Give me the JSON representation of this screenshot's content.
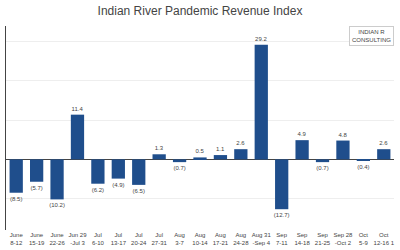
{
  "chart_data": {
    "type": "bar",
    "title": "Indian River Pandemic Revenue Index",
    "categories": [
      "June\n8-12",
      "June\n15-19",
      "June\n22-26",
      "Jun 29\n-Jul 3",
      "Jul\n6-10",
      "Jul\n13-17",
      "Jul\n20-24",
      "Jul\n27-31",
      "Aug\n3-7",
      "Aug\n10-14",
      "Aug\n17-21",
      "Aug\n24-28",
      "Aug 31\n-Sep 4",
      "Sep\n7-11",
      "Sep\n14-18",
      "Sep\n21-25",
      "Sep 28\n-Oct 2",
      "Oct\n5-9",
      "Oct\n12-16 1"
    ],
    "values": [
      -8.5,
      -5.7,
      -10.2,
      11.4,
      -6.2,
      -4.9,
      -6.5,
      1.3,
      -0.7,
      0.5,
      1.1,
      2.6,
      29.2,
      -12.7,
      4.9,
      -0.7,
      4.8,
      -0.4,
      2.6
    ],
    "value_labels": [
      "(8.5)",
      "(5.7)",
      "(10.2)",
      "11.4",
      "(6.2)",
      "(4.9)",
      "(6.5)",
      "1.3",
      "(0.7)",
      "0.5",
      "1.1",
      "2.6",
      "29.2",
      "(12.7)",
      "4.9",
      "(0.7)",
      "4.8",
      "(0.4)",
      "2.6"
    ],
    "data_labels": true,
    "color": "#1f4e8c",
    "ylim": [
      -18,
      34
    ],
    "yticks": [
      -10,
      0,
      10,
      20,
      30
    ],
    "grid": true,
    "tick_labels": "x",
    "annotations": [
      "INDIAN R\nCONSULTING"
    ]
  }
}
